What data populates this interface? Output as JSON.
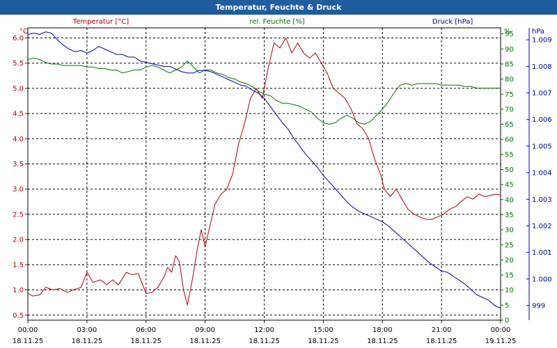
{
  "window": {
    "title": "Temperatur, Feuchte & Druck"
  },
  "chart_data": {
    "type": "line",
    "title": "Temperatur, Feuchte & Druck",
    "x_ticks": [
      {
        "time": "00:00",
        "date": "18.11.25"
      },
      {
        "time": "03:00",
        "date": "18.11.25"
      },
      {
        "time": "06:00",
        "date": "18.11.25"
      },
      {
        "time": "09:00",
        "date": "18.11.25"
      },
      {
        "time": "12:00",
        "date": "18.11.25"
      },
      {
        "time": "15:00",
        "date": "18.11.25"
      },
      {
        "time": "18:00",
        "date": "18.11.25"
      },
      {
        "time": "21:00",
        "date": "18.11.25"
      },
      {
        "time": "00:00",
        "date": "19.11.25"
      }
    ],
    "x_range_hours": [
      0,
      24
    ],
    "axes": {
      "temperature": {
        "unit": "°C",
        "legend": "Temperatur [°C]",
        "range": [
          0.4,
          6.2
        ],
        "ticks": [
          "0.5",
          "1.0",
          "1.5",
          "2.0",
          "2.5",
          "3.0",
          "3.5",
          "4.0",
          "4.5",
          "5.0",
          "5.5",
          "6.0"
        ],
        "color": "#b00000"
      },
      "humidity": {
        "unit": "%",
        "legend": "rel. Feuchte [%]",
        "range": [
          0,
          97
        ],
        "ticks": [
          "0",
          "5",
          "10",
          "15",
          "20",
          "25",
          "30",
          "35",
          "40",
          "45",
          "50",
          "55",
          "60",
          "65",
          "70",
          "75",
          "80",
          "85",
          "90",
          "95"
        ],
        "color": "#007000"
      },
      "pressure": {
        "unit": "hPa",
        "legend": "Druck [hPa]",
        "range": [
          998.45,
          1009.45
        ],
        "ticks": [
          "999",
          "1.000",
          "1.001",
          "1.002",
          "1.003",
          "1.004",
          "1.005",
          "1.006",
          "1.007",
          "1.008",
          "1.009"
        ],
        "color": "#0000a0"
      }
    },
    "series": [
      {
        "name": "Temperatur [°C]",
        "axis": "temperature",
        "color": "#b00000",
        "points": [
          [
            0,
            0.93
          ],
          [
            0.25,
            0.88
          ],
          [
            0.6,
            0.9
          ],
          [
            0.9,
            1.05
          ],
          [
            1.3,
            1.0
          ],
          [
            1.6,
            1.03
          ],
          [
            2.0,
            0.95
          ],
          [
            2.3,
            1.0
          ],
          [
            2.7,
            1.05
          ],
          [
            3.0,
            1.35
          ],
          [
            3.3,
            1.15
          ],
          [
            3.7,
            1.2
          ],
          [
            4.0,
            1.1
          ],
          [
            4.3,
            1.2
          ],
          [
            4.6,
            1.1
          ],
          [
            5.0,
            1.35
          ],
          [
            5.3,
            1.3
          ],
          [
            5.6,
            1.33
          ],
          [
            6.0,
            0.93
          ],
          [
            6.3,
            0.95
          ],
          [
            6.6,
            1.05
          ],
          [
            6.9,
            1.25
          ],
          [
            7.1,
            1.45
          ],
          [
            7.3,
            1.35
          ],
          [
            7.5,
            1.68
          ],
          [
            7.7,
            1.55
          ],
          [
            7.9,
            1.0
          ],
          [
            8.1,
            0.7
          ],
          [
            8.35,
            1.2
          ],
          [
            8.6,
            1.8
          ],
          [
            8.8,
            2.2
          ],
          [
            9.0,
            1.85
          ],
          [
            9.2,
            2.2
          ],
          [
            9.5,
            2.7
          ],
          [
            9.8,
            2.9
          ],
          [
            10.1,
            3.0
          ],
          [
            10.4,
            3.3
          ],
          [
            10.7,
            3.9
          ],
          [
            11.0,
            4.3
          ],
          [
            11.3,
            4.8
          ],
          [
            11.6,
            5.0
          ],
          [
            11.9,
            4.8
          ],
          [
            12.2,
            5.4
          ],
          [
            12.5,
            5.9
          ],
          [
            12.8,
            5.8
          ],
          [
            13.1,
            6.0
          ],
          [
            13.4,
            5.7
          ],
          [
            13.7,
            5.9
          ],
          [
            14.0,
            5.7
          ],
          [
            14.3,
            5.6
          ],
          [
            14.6,
            5.7
          ],
          [
            14.9,
            5.5
          ],
          [
            15.2,
            5.3
          ],
          [
            15.5,
            5.0
          ],
          [
            15.8,
            4.9
          ],
          [
            16.1,
            4.8
          ],
          [
            16.4,
            4.6
          ],
          [
            16.7,
            4.3
          ],
          [
            17.0,
            4.2
          ],
          [
            17.3,
            4.0
          ],
          [
            17.6,
            3.6
          ],
          [
            17.9,
            3.3
          ],
          [
            18.1,
            3.0
          ],
          [
            18.4,
            2.85
          ],
          [
            18.7,
            3.0
          ],
          [
            19.0,
            2.8
          ],
          [
            19.3,
            2.6
          ],
          [
            19.6,
            2.5
          ],
          [
            19.9,
            2.45
          ],
          [
            20.2,
            2.4
          ],
          [
            20.5,
            2.4
          ],
          [
            20.8,
            2.45
          ],
          [
            21.1,
            2.5
          ],
          [
            21.4,
            2.6
          ],
          [
            21.7,
            2.65
          ],
          [
            22.0,
            2.75
          ],
          [
            22.3,
            2.85
          ],
          [
            22.6,
            2.8
          ],
          [
            22.9,
            2.9
          ],
          [
            23.2,
            2.85
          ],
          [
            23.5,
            2.88
          ],
          [
            23.8,
            2.9
          ],
          [
            24.0,
            2.88
          ]
        ]
      },
      {
        "name": "rel. Feuchte [%]",
        "axis": "humidity",
        "color": "#007000",
        "points": [
          [
            0,
            86.5
          ],
          [
            0.3,
            87
          ],
          [
            0.6,
            86.5
          ],
          [
            0.9,
            85.5
          ],
          [
            1.2,
            85.0
          ],
          [
            1.5,
            85.0
          ],
          [
            1.8,
            84.5
          ],
          [
            2.1,
            84.5
          ],
          [
            2.4,
            84.5
          ],
          [
            2.7,
            84.5
          ],
          [
            3.0,
            84.0
          ],
          [
            3.3,
            84.0
          ],
          [
            3.6,
            83.5
          ],
          [
            3.9,
            83.5
          ],
          [
            4.2,
            83.0
          ],
          [
            4.5,
            83.0
          ],
          [
            4.8,
            82.0
          ],
          [
            5.1,
            82.5
          ],
          [
            5.4,
            83.0
          ],
          [
            5.7,
            83.0
          ],
          [
            6.0,
            84.0
          ],
          [
            6.3,
            84.5
          ],
          [
            6.6,
            84.0
          ],
          [
            6.9,
            83.0
          ],
          [
            7.2,
            82.0
          ],
          [
            7.5,
            83.0
          ],
          [
            7.8,
            84.0
          ],
          [
            8.1,
            86.0
          ],
          [
            8.4,
            84.0
          ],
          [
            8.7,
            82.0
          ],
          [
            9.0,
            83.0
          ],
          [
            9.3,
            83.0
          ],
          [
            9.6,
            82.0
          ],
          [
            9.9,
            81.5
          ],
          [
            10.2,
            80.5
          ],
          [
            10.5,
            80.0
          ],
          [
            10.8,
            79.0
          ],
          [
            11.1,
            78.5
          ],
          [
            11.4,
            77.5
          ],
          [
            11.7,
            76.0
          ],
          [
            12.0,
            75.0
          ],
          [
            12.3,
            74.5
          ],
          [
            12.6,
            73.0
          ],
          [
            12.9,
            72.0
          ],
          [
            13.2,
            72.0
          ],
          [
            13.5,
            71.5
          ],
          [
            13.8,
            71.0
          ],
          [
            14.1,
            70.0
          ],
          [
            14.4,
            69.0
          ],
          [
            14.7,
            67.0
          ],
          [
            15.0,
            65.5
          ],
          [
            15.3,
            65.0
          ],
          [
            15.6,
            65.5
          ],
          [
            15.9,
            67.0
          ],
          [
            16.2,
            68.0
          ],
          [
            16.5,
            67.0
          ],
          [
            16.8,
            65.5
          ],
          [
            17.1,
            65.0
          ],
          [
            17.4,
            66.0
          ],
          [
            17.7,
            68.0
          ],
          [
            18.0,
            70.0
          ],
          [
            18.3,
            72.5
          ],
          [
            18.6,
            75.5
          ],
          [
            18.9,
            78.0
          ],
          [
            19.2,
            78.5
          ],
          [
            19.5,
            78.0
          ],
          [
            19.8,
            78.5
          ],
          [
            20.1,
            78.5
          ],
          [
            20.4,
            78.5
          ],
          [
            20.7,
            78.5
          ],
          [
            21.0,
            78.0
          ],
          [
            21.3,
            78.0
          ],
          [
            21.6,
            78.0
          ],
          [
            21.9,
            78.0
          ],
          [
            22.2,
            77.5
          ],
          [
            22.5,
            77.5
          ],
          [
            22.8,
            77.0
          ],
          [
            23.1,
            77.0
          ],
          [
            23.4,
            77.0
          ],
          [
            23.7,
            77.0
          ],
          [
            24.0,
            77.0
          ]
        ]
      },
      {
        "name": "Druck [hPa]",
        "axis": "pressure",
        "color": "#0000a0",
        "points": [
          [
            0,
            1009.2
          ],
          [
            0.3,
            1009.25
          ],
          [
            0.6,
            1009.2
          ],
          [
            0.9,
            1009.3
          ],
          [
            1.2,
            1009.25
          ],
          [
            1.5,
            1009.0
          ],
          [
            1.8,
            1008.8
          ],
          [
            2.1,
            1008.65
          ],
          [
            2.4,
            1008.55
          ],
          [
            2.7,
            1008.6
          ],
          [
            3.0,
            1008.5
          ],
          [
            3.3,
            1008.6
          ],
          [
            3.6,
            1008.75
          ],
          [
            3.9,
            1008.65
          ],
          [
            4.2,
            1008.55
          ],
          [
            4.5,
            1008.45
          ],
          [
            4.8,
            1008.45
          ],
          [
            5.1,
            1008.35
          ],
          [
            5.4,
            1008.35
          ],
          [
            5.7,
            1008.2
          ],
          [
            6.0,
            1008.15
          ],
          [
            6.3,
            1008.1
          ],
          [
            6.6,
            1008.05
          ],
          [
            6.9,
            1008.0
          ],
          [
            7.2,
            1008.0
          ],
          [
            7.5,
            1007.9
          ],
          [
            7.8,
            1007.8
          ],
          [
            8.1,
            1007.75
          ],
          [
            8.4,
            1007.75
          ],
          [
            8.7,
            1007.85
          ],
          [
            9.0,
            1007.85
          ],
          [
            9.3,
            1007.8
          ],
          [
            9.6,
            1007.7
          ],
          [
            9.9,
            1007.6
          ],
          [
            10.2,
            1007.5
          ],
          [
            10.5,
            1007.4
          ],
          [
            10.8,
            1007.3
          ],
          [
            11.1,
            1007.25
          ],
          [
            11.4,
            1007.1
          ],
          [
            11.7,
            1007.0
          ],
          [
            12.0,
            1006.8
          ],
          [
            12.3,
            1006.5
          ],
          [
            12.6,
            1006.2
          ],
          [
            12.9,
            1005.9
          ],
          [
            13.2,
            1005.65
          ],
          [
            13.5,
            1005.3
          ],
          [
            13.8,
            1005.0
          ],
          [
            14.1,
            1004.7
          ],
          [
            14.4,
            1004.45
          ],
          [
            14.7,
            1004.2
          ],
          [
            15.0,
            1003.9
          ],
          [
            15.3,
            1003.65
          ],
          [
            15.6,
            1003.4
          ],
          [
            15.9,
            1003.15
          ],
          [
            16.2,
            1002.9
          ],
          [
            16.5,
            1002.7
          ],
          [
            16.8,
            1002.55
          ],
          [
            17.1,
            1002.45
          ],
          [
            17.4,
            1002.35
          ],
          [
            17.7,
            1002.25
          ],
          [
            18.0,
            1002.15
          ],
          [
            18.3,
            1002.0
          ],
          [
            18.6,
            1001.8
          ],
          [
            18.9,
            1001.6
          ],
          [
            19.2,
            1001.4
          ],
          [
            19.5,
            1001.2
          ],
          [
            19.8,
            1001.0
          ],
          [
            20.1,
            1000.8
          ],
          [
            20.4,
            1000.6
          ],
          [
            20.7,
            1000.45
          ],
          [
            21.0,
            1000.3
          ],
          [
            21.3,
            1000.25
          ],
          [
            21.6,
            1000.1
          ],
          [
            21.9,
            999.95
          ],
          [
            22.2,
            999.8
          ],
          [
            22.5,
            999.6
          ],
          [
            22.8,
            999.4
          ],
          [
            23.1,
            999.3
          ],
          [
            23.4,
            999.2
          ],
          [
            23.7,
            999.0
          ],
          [
            24.0,
            998.9
          ]
        ]
      }
    ],
    "grid": true
  }
}
